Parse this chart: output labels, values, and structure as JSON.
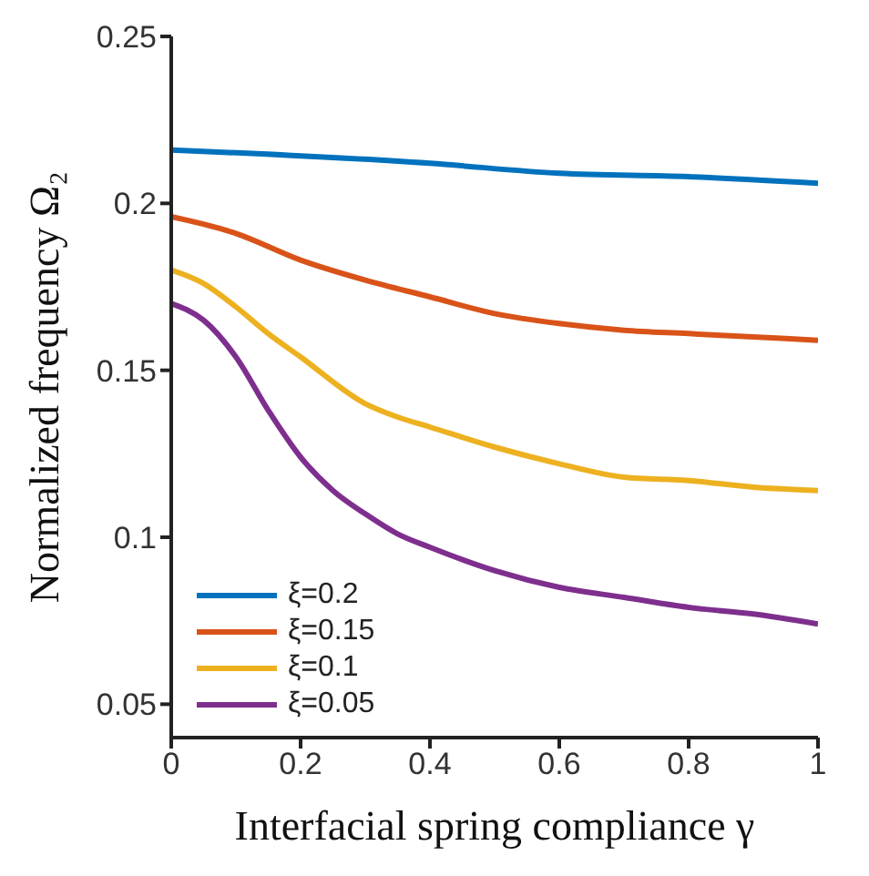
{
  "chart_data": {
    "type": "line",
    "xlabel": "Interfacial spring compliance γ",
    "ylabel": "Normalized frequency Ω₂",
    "x": [
      0,
      0.05,
      0.1,
      0.15,
      0.2,
      0.25,
      0.3,
      0.35,
      0.4,
      0.5,
      0.6,
      0.7,
      0.8,
      0.9,
      1
    ],
    "series": [
      {
        "name": "ξ=0.2",
        "color": "#0072bd",
        "values": [
          0.216,
          null,
          null,
          null,
          null,
          null,
          null,
          null,
          0.212,
          null,
          0.209,
          null,
          0.208,
          null,
          0.206
        ]
      },
      {
        "name": "ξ=0.15",
        "color": "#d95319",
        "values": [
          0.196,
          null,
          0.191,
          null,
          0.183,
          null,
          0.177,
          null,
          0.172,
          0.167,
          0.164,
          0.162,
          0.161,
          0.16,
          0.159
        ]
      },
      {
        "name": "ξ=0.1",
        "color": "#edb120",
        "values": [
          0.18,
          0.176,
          0.169,
          0.161,
          0.154,
          null,
          0.14,
          0.136,
          0.133,
          0.127,
          0.122,
          0.118,
          0.117,
          0.115,
          0.114
        ]
      },
      {
        "name": "ξ=0.05",
        "color": "#7e2f8e",
        "values": [
          0.17,
          0.165,
          0.154,
          0.138,
          0.124,
          0.114,
          0.107,
          0.101,
          0.097,
          0.09,
          0.085,
          0.082,
          0.079,
          0.077,
          0.074
        ]
      }
    ],
    "xlim": [
      0,
      1
    ],
    "xticks": [
      0,
      0.2,
      0.4,
      0.6,
      0.8,
      1
    ],
    "ylim": [
      0.04,
      0.25
    ],
    "yticks": [
      0.05,
      0.1,
      0.15,
      0.2,
      0.25
    ],
    "legend": "bottom left",
    "grid": false,
    "marker": "none",
    "line_style": "solid"
  }
}
